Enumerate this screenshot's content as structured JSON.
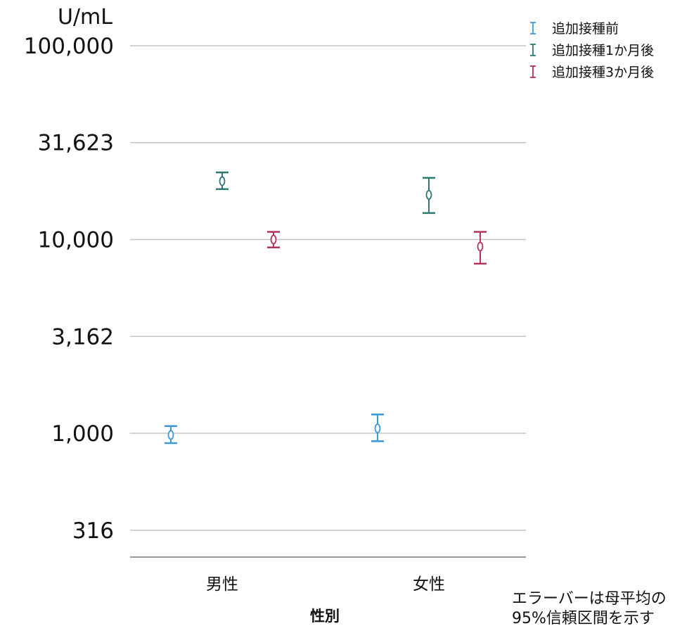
{
  "chart_data": {
    "type": "scatter",
    "error_bars": true,
    "y_scale": "log",
    "y_unit": "U/mL",
    "ylim": [
      200,
      100000
    ],
    "y_ticks": [
      {
        "value": 100000,
        "label": "100,000"
      },
      {
        "value": 31623,
        "label": "31,623"
      },
      {
        "value": 10000,
        "label": "10,000"
      },
      {
        "value": 3162,
        "label": "3,162"
      },
      {
        "value": 1000,
        "label": "1,000"
      },
      {
        "value": 316,
        "label": "316"
      }
    ],
    "grid": true,
    "categories": [
      "男性",
      "女性"
    ],
    "xlabel": "性別",
    "legend_position": "top-right",
    "series": [
      {
        "name": "追加接種前",
        "color": "#3a9ad9",
        "points": [
          {
            "mean": 980,
            "low": 890,
            "high": 1090
          },
          {
            "mean": 1060,
            "low": 910,
            "high": 1250
          }
        ]
      },
      {
        "name": "追加接種1か月後",
        "color": "#2e7772",
        "points": [
          {
            "mean": 20000,
            "low": 18200,
            "high": 22200
          },
          {
            "mean": 17000,
            "low": 13700,
            "high": 20800
          }
        ]
      },
      {
        "name": "追加接種3か月後",
        "color": "#b5305f",
        "points": [
          {
            "mean": 10000,
            "low": 9100,
            "high": 10950
          },
          {
            "mean": 9200,
            "low": 7500,
            "high": 10950
          }
        ]
      }
    ],
    "annotation": [
      "エラーバーは母平均の",
      "95%信頼区間を示す"
    ]
  }
}
